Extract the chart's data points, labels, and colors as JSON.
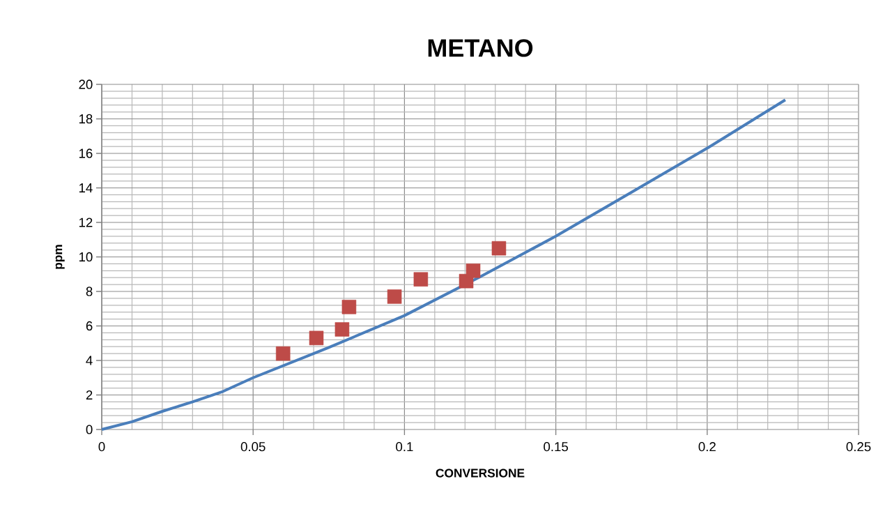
{
  "chart_data": {
    "type": "scatter",
    "title": "METANO",
    "xlabel": "CONVERSIONE",
    "ylabel": "ppm",
    "xlim": [
      0,
      0.25
    ],
    "xticks": [
      0,
      0.05,
      0.1,
      0.15,
      0.2,
      0.25
    ],
    "ylim": [
      0,
      20
    ],
    "yticks": [
      0,
      2,
      4,
      6,
      8,
      10,
      12,
      14,
      16,
      18,
      20
    ],
    "grid": true,
    "series": [
      {
        "type": "line",
        "color": "#4a7ebb",
        "marker": "none",
        "line_style": "solid",
        "x": [
          0,
          0.01,
          0.02,
          0.03,
          0.04,
          0.05,
          0.075,
          0.1,
          0.125,
          0.15,
          0.175,
          0.2,
          0.2258
        ],
        "values": [
          0,
          0.45,
          1.05,
          1.6,
          2.2,
          3.0,
          4.75,
          6.6,
          8.85,
          11.2,
          13.75,
          16.3,
          19.1
        ]
      },
      {
        "color": "#be4b48",
        "marker": "square",
        "x": [
          0.0599,
          0.0709,
          0.0794,
          0.0817,
          0.0967,
          0.1054,
          0.1204,
          0.1227,
          0.1312
        ],
        "values": [
          4.4,
          5.3,
          5.8,
          7.1,
          7.7,
          8.7,
          8.6,
          9.2,
          10.5
        ]
      }
    ]
  }
}
